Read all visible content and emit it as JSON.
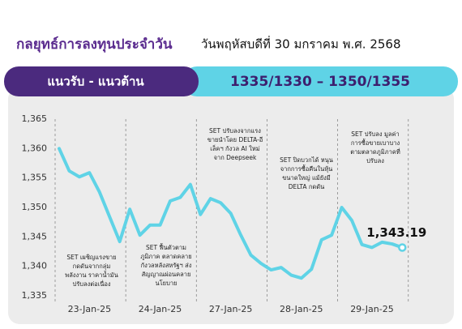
{
  "header": {
    "title": "กลยุทธ์การลงทุนประจำวัน",
    "date": "วันพฤหัสบดีที่ 30 มกราคม พ.ศ. 2568",
    "range_label": "แนวรับ - แนวต้าน",
    "range_value": "1335/1330 – 1350/1355"
  },
  "chart_data": {
    "type": "line",
    "categories": [
      null,
      null,
      null,
      "23-Jan-25",
      null,
      null,
      null,
      null,
      null,
      null,
      "24-Jan-25",
      null,
      null,
      null,
      null,
      null,
      null,
      "27-Jan-25",
      null,
      null,
      null,
      null,
      null,
      null,
      "28-Jan-25",
      null,
      null,
      null,
      null,
      null,
      null,
      "29-Jan-25",
      null,
      null,
      null
    ],
    "series": [
      {
        "name": "SET",
        "color": "#5fd3e6",
        "values": [
          1360.0,
          1356.2,
          1355.2,
          1355.9,
          1352.6,
          1348.4,
          1344.2,
          1349.7,
          1345.3,
          1347.0,
          1347.0,
          1351.1,
          1351.7,
          1353.9,
          1348.8,
          1351.5,
          1350.8,
          1349.0,
          1345.3,
          1341.9,
          1340.5,
          1339.4,
          1339.8,
          1338.5,
          1338.0,
          1339.5,
          1344.5,
          1345.3,
          1350.0,
          1347.8,
          1343.7,
          1343.2,
          1344.1,
          1343.8,
          1343.19
        ]
      }
    ],
    "last_value_label": "1,343.19",
    "ylim": [
      1335,
      1365
    ],
    "yticks": [
      {
        "value": 1335,
        "label": "1,335"
      },
      {
        "value": 1340,
        "label": "1,340"
      },
      {
        "value": 1345,
        "label": "1,345"
      },
      {
        "value": 1350,
        "label": "1,350"
      },
      {
        "value": 1355,
        "label": "1,355"
      },
      {
        "value": 1360,
        "label": "1,360"
      },
      {
        "value": 1365,
        "label": "1,365"
      }
    ],
    "annotations": [
      [
        "SET เผชิญแรงขาย",
        "กดดันจากกลุ่ม",
        "พลังงาน ราคาน้ำมัน",
        "ปรับลงต่อเนื่อง"
      ],
      [
        "SET ฟื้นตัวตาม",
        "ภูมิภาค ตลาดคลาย",
        "กังวลหลังสหรัฐฯ ส่ง",
        "สัญญาณผ่อนคลาย",
        "นโยบาย"
      ],
      [
        "SET ปรับลงจากแรง",
        "ขายนำโดย DELTA-อี",
        "เล็คฯ กังวล AI ใหม่",
        "จาก Deepseek"
      ],
      [
        "SET ปิดบวกได้ หนุน",
        "จากการซื้อคืนในหุ้น",
        "ขนาดใหญ่ แม้ยังมี",
        "DELTA กดดัน"
      ],
      [
        "SET ปรับลง มูลค่า",
        "การซื้อขายเบาบาง",
        "ตามตลาดภูมิภาคที่",
        "ปรับลง"
      ]
    ]
  }
}
